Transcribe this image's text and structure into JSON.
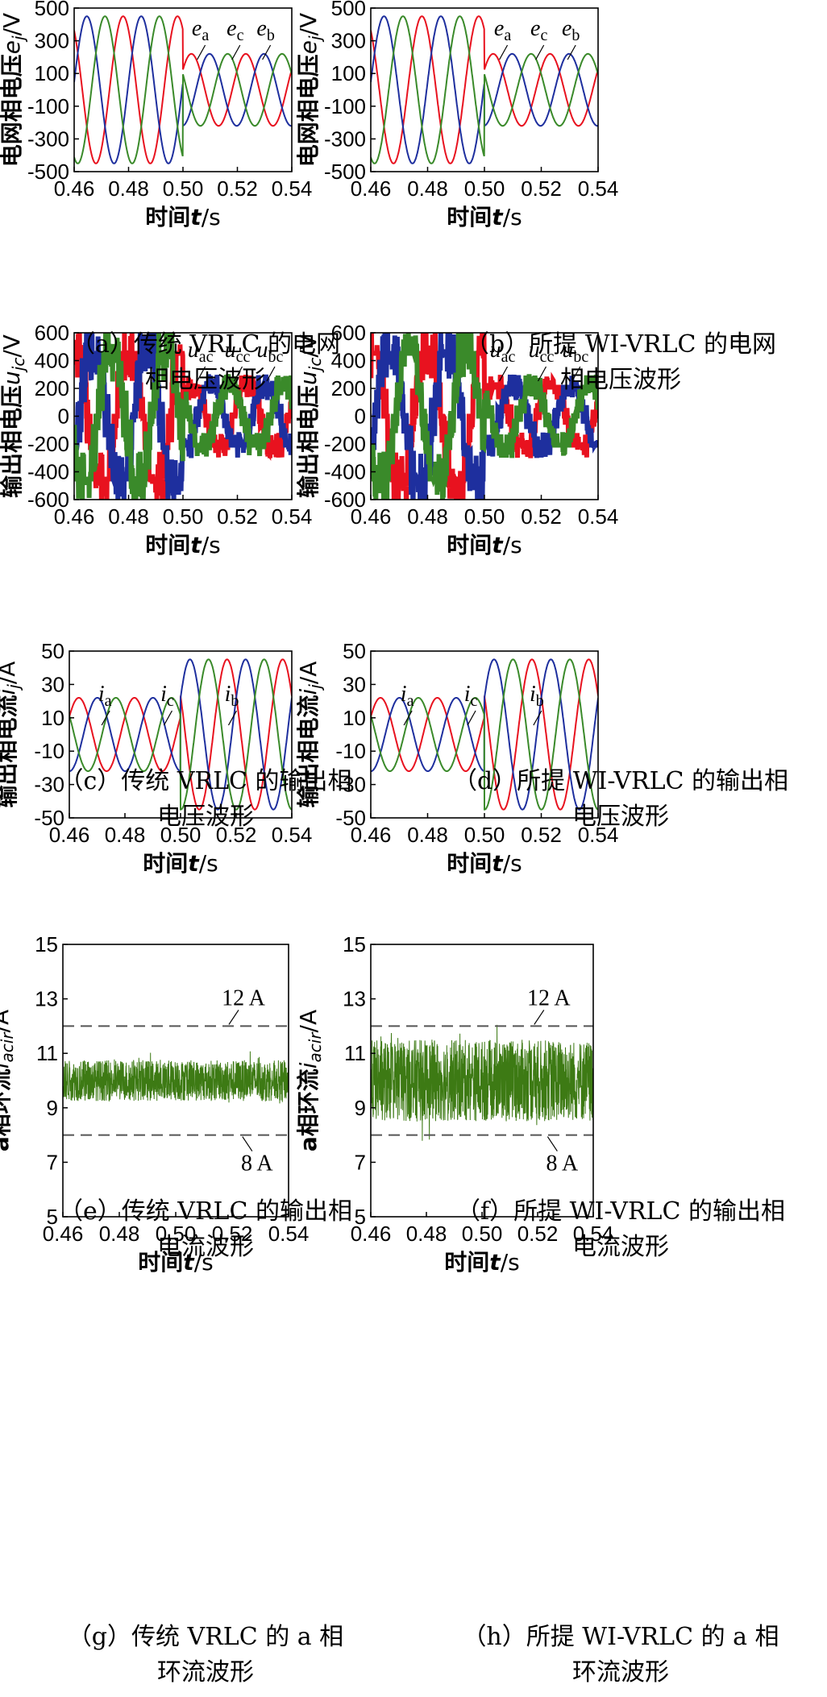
{
  "captions": [
    {
      "line1": "（a）传统 VRLC 的电网",
      "line2": "相电压波形"
    },
    {
      "line1": "（b）所提 WI-VRLC 的电网",
      "line2": "相电压波形"
    },
    {
      "line1": "（c）传统 VRLC 的输出相",
      "line2": "电压波形"
    },
    {
      "line1": "（d）所提 WI-VRLC 的输出相",
      "line2": "电压波形"
    },
    {
      "line1": "（e）传统 VRLC 的输出相",
      "line2": "电流波形"
    },
    {
      "line1": "（f）所提 WI-VRLC 的输出相",
      "line2": "电流波形"
    },
    {
      "line1": "（g）传统 VRLC 的 a 相",
      "line2": "环流波形"
    },
    {
      "line1": "（h）所提 WI-VRLC 的 a 相",
      "line2": "环流波形"
    }
  ],
  "colors": {
    "phase_a": "#e8121f",
    "phase_b": "#1e2f9e",
    "phase_c": "#3a8a2a",
    "circ": "#3d7a14",
    "ref": "#555555"
  },
  "chart_data": [
    {
      "id": "a",
      "type": "line",
      "xlabel": "时间t/s",
      "ylabel": "电网相电压e_j/V",
      "xlim": [
        0.46,
        0.54
      ],
      "ylim": [
        -500,
        500
      ],
      "xticks": [
        "0.46",
        "0.48",
        "0.50",
        "0.52",
        "0.54"
      ],
      "yticks": [
        "500",
        "300",
        "100",
        "-100",
        "-300",
        "-500"
      ],
      "series": [
        {
          "name": "e_a",
          "amplitude_before": 450,
          "amplitude_after": 220,
          "frequency_hz": 50,
          "phase_deg": -30
        },
        {
          "name": "e_b",
          "amplitude_before": 450,
          "amplitude_after": 220,
          "frequency_hz": 50,
          "phase_deg": -150
        },
        {
          "name": "e_c",
          "amplitude_before": 450,
          "amplitude_after": 220,
          "frequency_hz": 50,
          "phase_deg": 90
        }
      ],
      "step_time": 0.5,
      "labels": [
        "e",
        "e",
        "e"
      ],
      "label_subs": [
        "a",
        "c",
        "b"
      ]
    },
    {
      "id": "b",
      "type": "line",
      "xlabel": "时间t/s",
      "ylabel": "电网相电压e_j/V",
      "xlim": [
        0.46,
        0.54
      ],
      "ylim": [
        -500,
        500
      ],
      "xticks": [
        "0.46",
        "0.48",
        "0.50",
        "0.52",
        "0.54"
      ],
      "yticks": [
        "500",
        "300",
        "100",
        "-100",
        "-300",
        "-500"
      ],
      "series": [
        {
          "name": "e_a",
          "amplitude_before": 450,
          "amplitude_after": 220,
          "frequency_hz": 50,
          "phase_deg": -30
        },
        {
          "name": "e_b",
          "amplitude_before": 450,
          "amplitude_after": 220,
          "frequency_hz": 50,
          "phase_deg": -150
        },
        {
          "name": "e_c",
          "amplitude_before": 450,
          "amplitude_after": 220,
          "frequency_hz": 50,
          "phase_deg": 90
        }
      ],
      "step_time": 0.5,
      "labels": [
        "e",
        "e",
        "e"
      ],
      "label_subs": [
        "a",
        "c",
        "b"
      ]
    },
    {
      "id": "c",
      "type": "line",
      "xlabel": "时间t/s",
      "ylabel": "输出相电压u_jc/V",
      "xlim": [
        0.46,
        0.54
      ],
      "ylim": [
        -600,
        600
      ],
      "xticks": [
        "0.46",
        "0.48",
        "0.50",
        "0.52",
        "0.54"
      ],
      "yticks": [
        "600",
        "400",
        "200",
        "0",
        "-200",
        "-400",
        "-600"
      ],
      "series": [
        {
          "name": "u_ac",
          "amplitude_before": 520,
          "amplitude_after": 240,
          "frequency_hz": 50
        },
        {
          "name": "u_bc",
          "amplitude_before": 520,
          "amplitude_after": 240,
          "frequency_hz": 50
        },
        {
          "name": "u_cc",
          "amplitude_before": 520,
          "amplitude_after": 240,
          "frequency_hz": 50
        }
      ],
      "step_time": 0.5,
      "labels": [
        "u",
        "u",
        "u"
      ],
      "label_subs": [
        "ac",
        "cc",
        "bc"
      ]
    },
    {
      "id": "d",
      "type": "line",
      "xlabel": "时间t/s",
      "ylabel": "输出相电压u_jc/V",
      "xlim": [
        0.46,
        0.54
      ],
      "ylim": [
        -600,
        600
      ],
      "xticks": [
        "0.46",
        "0.48",
        "0.50",
        "0.52",
        "0.54"
      ],
      "yticks": [
        "600",
        "400",
        "200",
        "0",
        "-200",
        "-400",
        "-600"
      ],
      "series": [
        {
          "name": "u_ac",
          "amplitude_before": 520,
          "amplitude_after": 240,
          "frequency_hz": 50
        },
        {
          "name": "u_bc",
          "amplitude_before": 520,
          "amplitude_after": 240,
          "frequency_hz": 50
        },
        {
          "name": "u_cc",
          "amplitude_before": 520,
          "amplitude_after": 240,
          "frequency_hz": 50
        }
      ],
      "step_time": 0.5,
      "labels": [
        "u",
        "u",
        "u"
      ],
      "label_subs": [
        "ac",
        "cc",
        "bc"
      ]
    },
    {
      "id": "e",
      "type": "line",
      "xlabel": "时间t/s",
      "ylabel": "输出相电流i_j/A",
      "xlim": [
        0.46,
        0.54
      ],
      "ylim": [
        -50,
        50
      ],
      "xticks": [
        "0.46",
        "0.48",
        "0.50",
        "0.52",
        "0.54"
      ],
      "yticks": [
        "50",
        "30",
        "10",
        "-10",
        "-30",
        "-50"
      ],
      "series": [
        {
          "name": "i_a",
          "amplitude_before": 22,
          "amplitude_after": 45,
          "frequency_hz": 50
        },
        {
          "name": "i_b",
          "amplitude_before": 22,
          "amplitude_after": 45,
          "frequency_hz": 50
        },
        {
          "name": "i_c",
          "amplitude_before": 22,
          "amplitude_after": 45,
          "frequency_hz": 50
        }
      ],
      "step_time": 0.5,
      "labels": [
        "i",
        "i",
        "i"
      ],
      "label_subs": [
        "a",
        "c",
        "b"
      ]
    },
    {
      "id": "f",
      "type": "line",
      "xlabel": "时间t/s",
      "ylabel": "输出相电流i_j/A",
      "xlim": [
        0.46,
        0.54
      ],
      "ylim": [
        -50,
        50
      ],
      "xticks": [
        "0.46",
        "0.48",
        "0.50",
        "0.52",
        "0.54"
      ],
      "yticks": [
        "50",
        "30",
        "10",
        "-10",
        "-30",
        "-50"
      ],
      "series": [
        {
          "name": "i_a",
          "amplitude_before": 22,
          "amplitude_after": 45,
          "frequency_hz": 50
        },
        {
          "name": "i_b",
          "amplitude_before": 22,
          "amplitude_after": 45,
          "frequency_hz": 50
        },
        {
          "name": "i_c",
          "amplitude_before": 22,
          "amplitude_after": 45,
          "frequency_hz": 50
        }
      ],
      "step_time": 0.5,
      "labels": [
        "i",
        "i",
        "i"
      ],
      "label_subs": [
        "a",
        "c",
        "b"
      ]
    },
    {
      "id": "g",
      "type": "line",
      "xlabel": "时间t/s",
      "ylabel": "a相环流i_acir/A",
      "xlim": [
        0.46,
        0.54
      ],
      "ylim": [
        5,
        15
      ],
      "xticks": [
        "0.46",
        "0.48",
        "0.50",
        "0.52",
        "0.54"
      ],
      "yticks": [
        "15",
        "13",
        "11",
        "9",
        "7",
        "5"
      ],
      "series": [
        {
          "name": "i_acir",
          "mean": 10,
          "noise_band": [
            9,
            11
          ]
        }
      ],
      "ref_lines": [
        12,
        8
      ],
      "ref_labels": [
        "12 A",
        "8 A"
      ]
    },
    {
      "id": "h",
      "type": "line",
      "xlabel": "时间t/s",
      "ylabel": "a相环流i_acir/A",
      "xlim": [
        0.46,
        0.54
      ],
      "ylim": [
        5,
        15
      ],
      "xticks": [
        "0.46",
        "0.48",
        "0.50",
        "0.52",
        "0.54"
      ],
      "yticks": [
        "15",
        "13",
        "11",
        "9",
        "7",
        "5"
      ],
      "series": [
        {
          "name": "i_acir",
          "mean": 10,
          "noise_band": [
            8,
            12
          ]
        }
      ],
      "ref_lines": [
        12,
        8
      ],
      "ref_labels": [
        "12 A",
        "8 A"
      ]
    }
  ]
}
